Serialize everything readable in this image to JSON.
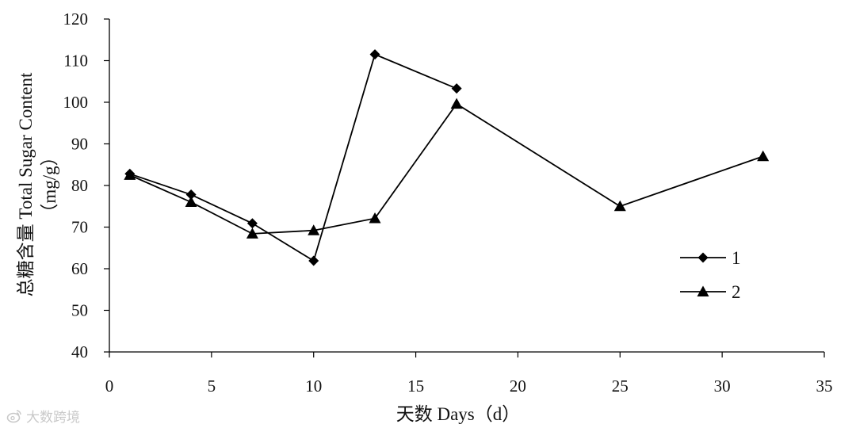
{
  "chart_data": {
    "type": "line",
    "title": "",
    "xlabel": "天数 Days（d）",
    "ylabel_line1": "总糖含量 Total Sugar Content",
    "ylabel_line2": "（mg/g）",
    "xlim": [
      0,
      35
    ],
    "ylim": [
      40,
      120
    ],
    "x_ticks": [
      0,
      5,
      10,
      15,
      20,
      25,
      30,
      35
    ],
    "y_ticks": [
      40,
      50,
      60,
      70,
      80,
      90,
      100,
      110,
      120
    ],
    "grid": false,
    "legend_position": "right",
    "series": [
      {
        "name": "1",
        "marker": "diamond",
        "color": "#000000",
        "x": [
          1,
          4,
          7,
          10,
          13,
          17
        ],
        "y": [
          82.8,
          77.8,
          70.9,
          61.9,
          111.5,
          103.3
        ]
      },
      {
        "name": "2",
        "marker": "triangle",
        "color": "#000000",
        "x": [
          1,
          4,
          7,
          10,
          13,
          17,
          25,
          32
        ],
        "y": [
          82.5,
          76.0,
          68.4,
          69.2,
          72.1,
          99.6,
          75.0,
          87.0
        ]
      }
    ]
  },
  "watermark": {
    "text": "大数跨境",
    "icon": "weibo-logo-icon"
  }
}
